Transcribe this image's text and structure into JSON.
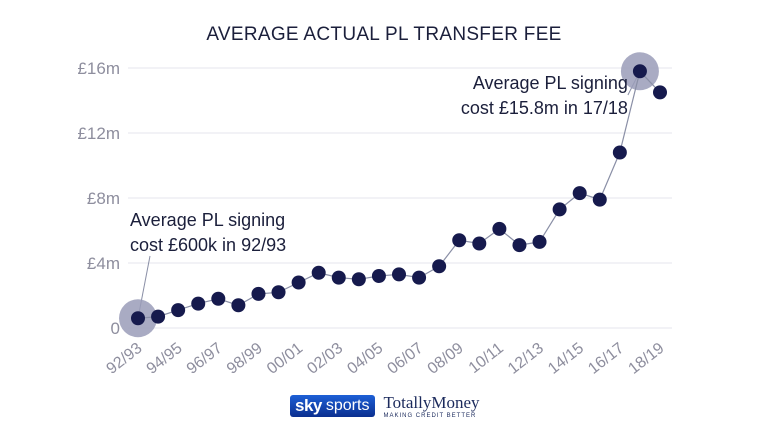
{
  "chart_data": {
    "type": "line",
    "title": "AVERAGE ACTUAL PL TRANSFER FEE",
    "xlabel": "",
    "ylabel": "",
    "ylim": [
      0,
      16
    ],
    "y_ticks": [
      {
        "value": 0,
        "label": "0"
      },
      {
        "value": 4,
        "label": "£4m"
      },
      {
        "value": 8,
        "label": "£8m"
      },
      {
        "value": 12,
        "label": "£12m"
      },
      {
        "value": 16,
        "label": "£16m"
      }
    ],
    "x_tick_labels": [
      "92/93",
      "94/95",
      "96/97",
      "98/99",
      "00/01",
      "02/03",
      "04/05",
      "06/07",
      "08/09",
      "10/11",
      "12/13",
      "14/15",
      "16/17",
      "18/19"
    ],
    "categories": [
      "92/93",
      "93/94",
      "94/95",
      "95/96",
      "96/97",
      "97/98",
      "98/99",
      "99/00",
      "00/01",
      "01/02",
      "02/03",
      "03/04",
      "04/05",
      "05/06",
      "06/07",
      "07/08",
      "08/09",
      "09/10",
      "10/11",
      "11/12",
      "12/13",
      "13/14",
      "14/15",
      "15/16",
      "16/17",
      "17/18",
      "18/19"
    ],
    "series": [
      {
        "values": [
          0.6,
          0.7,
          1.1,
          1.5,
          1.8,
          1.4,
          2.1,
          2.2,
          2.8,
          3.4,
          3.1,
          3.0,
          3.2,
          3.3,
          3.1,
          3.8,
          5.4,
          5.2,
          6.1,
          5.1,
          5.3,
          7.3,
          8.3,
          7.9,
          10.8,
          15.8,
          14.5
        ],
        "color": "#161a4d"
      }
    ],
    "highlights": [
      "92/93",
      "17/18"
    ],
    "annotations": [
      {
        "lines": [
          "Average PL signing",
          "cost £600k in 92/93"
        ],
        "category": "92/93"
      },
      {
        "lines": [
          "Average PL signing",
          "cost £15.8m in 17/18"
        ],
        "category": "17/18"
      }
    ],
    "grid": true,
    "legend": "none"
  },
  "branding": {
    "sky": "sky",
    "sports": "sports",
    "partner": "TotallyMoney",
    "partner_tagline": "MAKING CREDIT BETTER"
  }
}
